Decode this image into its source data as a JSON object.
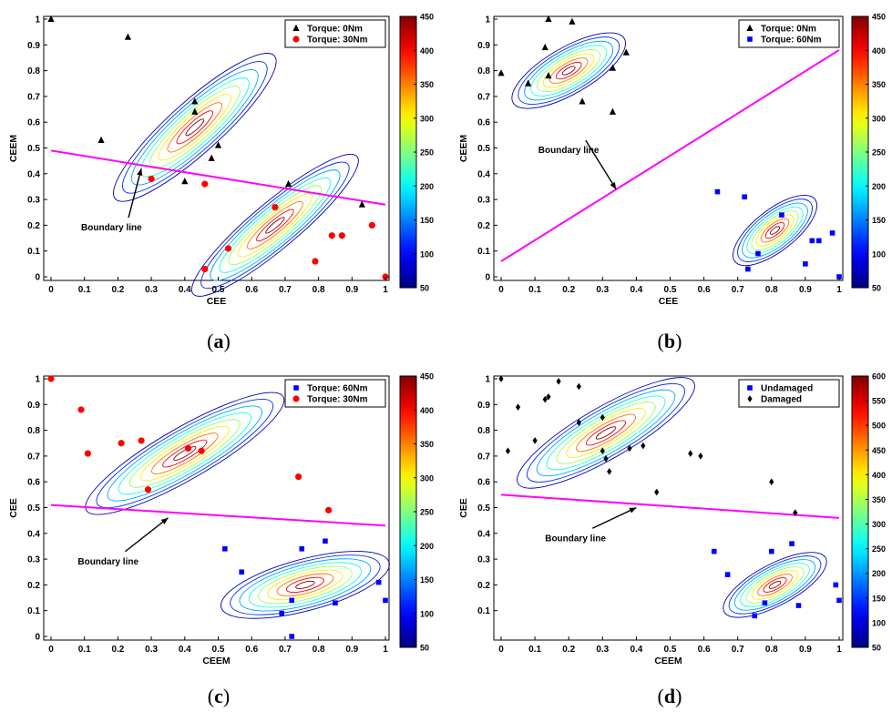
{
  "colors": {
    "boundary": "#ff00ff",
    "black": "#000000",
    "red": "#ff0000",
    "blue": "#0000ff"
  },
  "chart_data": [
    {
      "id": "a",
      "type": "scatter",
      "label": "a",
      "xlabel": "CEE",
      "ylabel": "CEEM",
      "xlim": [
        0,
        1
      ],
      "ylim": [
        0,
        1
      ],
      "xticks": [
        "0",
        "0.1",
        "0.2",
        "0.3",
        "0.4",
        "0.5",
        "0.6",
        "0.7",
        "0.8",
        "0.9",
        "1"
      ],
      "yticks": [
        "0",
        "0.1",
        "0.2",
        "0.3",
        "0.4",
        "0.5",
        "0.6",
        "0.7",
        "0.8",
        "0.9",
        "1"
      ],
      "colorbar": {
        "min": 50,
        "max": 450,
        "ticks": [
          "50",
          "100",
          "150",
          "200",
          "250",
          "300",
          "350",
          "400",
          "450"
        ]
      },
      "legend_position": "top-right",
      "series": [
        {
          "name": "Torque: 0Nm",
          "marker": "triangle",
          "color": "#000000",
          "points": [
            [
              0,
              1
            ],
            [
              0.23,
              0.93
            ],
            [
              0.15,
              0.53
            ],
            [
              0.43,
              0.68
            ],
            [
              0.43,
              0.64
            ],
            [
              0.5,
              0.51
            ],
            [
              0.48,
              0.46
            ],
            [
              0.4,
              0.37
            ],
            [
              0.71,
              0.36
            ],
            [
              0.93,
              0.28
            ]
          ]
        },
        {
          "name": "Torque: 30Nm",
          "marker": "circle",
          "color": "#ff0000",
          "points": [
            [
              0.3,
              0.38
            ],
            [
              0.46,
              0.36
            ],
            [
              0.67,
              0.27
            ],
            [
              0.53,
              0.11
            ],
            [
              0.46,
              0.03
            ],
            [
              0.79,
              0.06
            ],
            [
              0.84,
              0.16
            ],
            [
              0.87,
              0.16
            ],
            [
              0.96,
              0.2
            ],
            [
              1,
              0
            ]
          ]
        }
      ],
      "boundary": {
        "label": "Boundary line",
        "from": [
          0,
          0.49
        ],
        "to": [
          1,
          0.28
        ]
      },
      "annotation": {
        "text": "Boundary line",
        "text_at": [
          0.09,
          0.18
        ],
        "arrow_to": [
          0.27,
          0.42
        ]
      },
      "contours": [
        {
          "center": [
            0.43,
            0.58
          ],
          "rx": 0.32,
          "ry": 0.1,
          "angle": -42,
          "peak": 450
        },
        {
          "center": [
            0.67,
            0.2
          ],
          "rx": 0.32,
          "ry": 0.09,
          "angle": -40,
          "peak": 450
        }
      ]
    },
    {
      "id": "b",
      "type": "scatter",
      "label": "b",
      "xlabel": "CEE",
      "ylabel": "CEEM",
      "xlim": [
        0,
        1
      ],
      "ylim": [
        0,
        1
      ],
      "xticks": [
        "0",
        "0.1",
        "0.2",
        "0.3",
        "0.4",
        "0.5",
        "0.6",
        "0.7",
        "0.8",
        "0.9",
        "1"
      ],
      "yticks": [
        "0",
        "0.1",
        "0.2",
        "0.3",
        "0.4",
        "0.5",
        "0.6",
        "0.7",
        "0.8",
        "0.9",
        "1"
      ],
      "colorbar": {
        "min": 50,
        "max": 450,
        "ticks": [
          "50",
          "100",
          "150",
          "200",
          "250",
          "300",
          "350",
          "400",
          "450"
        ]
      },
      "legend_position": "top-right",
      "series": [
        {
          "name": "Torque: 0Nm",
          "marker": "triangle",
          "color": "#000000",
          "points": [
            [
              0,
              0.79
            ],
            [
              0.14,
              1
            ],
            [
              0.21,
              0.99
            ],
            [
              0.13,
              0.89
            ],
            [
              0.08,
              0.75
            ],
            [
              0.14,
              0.78
            ],
            [
              0.33,
              0.81
            ],
            [
              0.37,
              0.87
            ],
            [
              0.24,
              0.68
            ],
            [
              0.33,
              0.64
            ]
          ]
        },
        {
          "name": "Torque: 60Nm",
          "marker": "square",
          "color": "#0000ff",
          "points": [
            [
              0.64,
              0.33
            ],
            [
              0.72,
              0.31
            ],
            [
              0.83,
              0.24
            ],
            [
              0.76,
              0.09
            ],
            [
              0.73,
              0.03
            ],
            [
              0.92,
              0.14
            ],
            [
              0.94,
              0.14
            ],
            [
              0.98,
              0.17
            ],
            [
              0.9,
              0.05
            ],
            [
              1,
              0
            ]
          ]
        }
      ],
      "boundary": {
        "label": "Boundary line",
        "from": [
          0,
          0.06
        ],
        "to": [
          1,
          0.88
        ]
      },
      "annotation": {
        "text": "Boundary line",
        "text_at": [
          0.11,
          0.48
        ],
        "arrow_to": [
          0.34,
          0.34
        ]
      },
      "contours": [
        {
          "center": [
            0.2,
            0.8
          ],
          "rx": 0.19,
          "ry": 0.09,
          "angle": -30,
          "peak": 450
        },
        {
          "center": [
            0.81,
            0.18
          ],
          "rx": 0.15,
          "ry": 0.08,
          "angle": -38,
          "peak": 450
        }
      ]
    },
    {
      "id": "c",
      "type": "scatter",
      "label": "c",
      "xlabel": "CEEM",
      "ylabel": "CEE",
      "xlim": [
        0,
        1
      ],
      "ylim": [
        0,
        1
      ],
      "xticks": [
        "0",
        "0.1",
        "0.2",
        "0.3",
        "0.4",
        "0.5",
        "0.6",
        "0.7",
        "0.8",
        "0.9",
        "1"
      ],
      "yticks": [
        "0",
        "0.1",
        "0.2",
        "0.3",
        "0.4",
        "0.5",
        "0.6",
        "0.7",
        "0.8",
        "0.9",
        "1"
      ],
      "colorbar": {
        "min": 50,
        "max": 450,
        "ticks": [
          "50",
          "100",
          "150",
          "200",
          "250",
          "300",
          "350",
          "400",
          "450"
        ]
      },
      "legend_position": "top-right",
      "series": [
        {
          "name": "Torque: 60Nm",
          "marker": "square",
          "color": "#0000ff",
          "points": [
            [
              0.52,
              0.34
            ],
            [
              0.57,
              0.25
            ],
            [
              0.75,
              0.34
            ],
            [
              0.82,
              0.37
            ],
            [
              0.72,
              0.14
            ],
            [
              0.69,
              0.09
            ],
            [
              0.72,
              0
            ],
            [
              0.85,
              0.13
            ],
            [
              0.98,
              0.21
            ],
            [
              1,
              0.14
            ]
          ]
        },
        {
          "name": "Torque: 30Nm",
          "marker": "circle",
          "color": "#ff0000",
          "points": [
            [
              0,
              1
            ],
            [
              0.09,
              0.88
            ],
            [
              0.11,
              0.71
            ],
            [
              0.21,
              0.75
            ],
            [
              0.27,
              0.76
            ],
            [
              0.41,
              0.73
            ],
            [
              0.45,
              0.72
            ],
            [
              0.29,
              0.57
            ],
            [
              0.74,
              0.62
            ],
            [
              0.83,
              0.49
            ]
          ]
        }
      ],
      "boundary": {
        "label": "Boundary line",
        "from": [
          0,
          0.51
        ],
        "to": [
          1,
          0.43
        ]
      },
      "annotation": {
        "text": "Boundary line",
        "text_at": [
          0.08,
          0.28
        ],
        "arrow_to": [
          0.35,
          0.46
        ]
      },
      "contours": [
        {
          "center": [
            0.4,
            0.71
          ],
          "rx": 0.34,
          "ry": 0.1,
          "angle": -30,
          "peak": 450
        },
        {
          "center": [
            0.76,
            0.2
          ],
          "rx": 0.26,
          "ry": 0.1,
          "angle": -15,
          "peak": 450
        }
      ]
    },
    {
      "id": "d",
      "type": "scatter",
      "label": "d",
      "xlabel": "CEEM",
      "ylabel": "CEE",
      "xlim": [
        0,
        1
      ],
      "ylim": [
        0,
        1
      ],
      "xticks": [
        "0",
        "0.1",
        "0.2",
        "0.3",
        "0.4",
        "0.5",
        "0.6",
        "0.7",
        "0.8",
        "0.9",
        "1"
      ],
      "yticks": [
        "0.1",
        "0.2",
        "0.3",
        "0.4",
        "0.5",
        "0.6",
        "0.7",
        "0.8",
        "0.9",
        "1"
      ],
      "colorbar": {
        "min": 50,
        "max": 600,
        "ticks": [
          "50",
          "100",
          "150",
          "200",
          "250",
          "300",
          "350",
          "400",
          "450",
          "500",
          "550",
          "600"
        ]
      },
      "legend_position": "top-right",
      "series": [
        {
          "name": "Undamaged",
          "marker": "square",
          "color": "#0000ff",
          "points": [
            [
              0.63,
              0.33
            ],
            [
              0.67,
              0.24
            ],
            [
              0.8,
              0.33
            ],
            [
              0.86,
              0.36
            ],
            [
              0.78,
              0.13
            ],
            [
              0.75,
              0.08
            ],
            [
              0.88,
              0.12
            ],
            [
              0.99,
              0.2
            ],
            [
              1,
              0.14
            ]
          ]
        },
        {
          "name": "Damaged",
          "marker": "diamond",
          "color": "#000000",
          "points": [
            [
              0,
              1
            ],
            [
              0.05,
              0.89
            ],
            [
              0.02,
              0.72
            ],
            [
              0.1,
              0.76
            ],
            [
              0.14,
              0.93
            ],
            [
              0.13,
              0.92
            ],
            [
              0.17,
              0.99
            ],
            [
              0.23,
              0.97
            ],
            [
              0.23,
              0.83
            ],
            [
              0.3,
              0.85
            ],
            [
              0.3,
              0.72
            ],
            [
              0.31,
              0.69
            ],
            [
              0.32,
              0.64
            ],
            [
              0.38,
              0.73
            ],
            [
              0.42,
              0.74
            ],
            [
              0.46,
              0.56
            ],
            [
              0.56,
              0.71
            ],
            [
              0.59,
              0.7
            ],
            [
              0.8,
              0.6
            ],
            [
              0.87,
              0.48
            ]
          ]
        }
      ],
      "boundary": {
        "label": "Boundary line",
        "from": [
          0,
          0.55
        ],
        "to": [
          1,
          0.46
        ]
      },
      "annotation": {
        "text": "Boundary line",
        "text_at": [
          0.13,
          0.37
        ],
        "arrow_to": [
          0.4,
          0.5
        ]
      },
      "contours": [
        {
          "center": [
            0.31,
            0.79
          ],
          "rx": 0.3,
          "ry": 0.1,
          "angle": -30,
          "peak": 600
        },
        {
          "center": [
            0.81,
            0.2
          ],
          "rx": 0.17,
          "ry": 0.08,
          "angle": -28,
          "peak": 600
        }
      ]
    }
  ]
}
